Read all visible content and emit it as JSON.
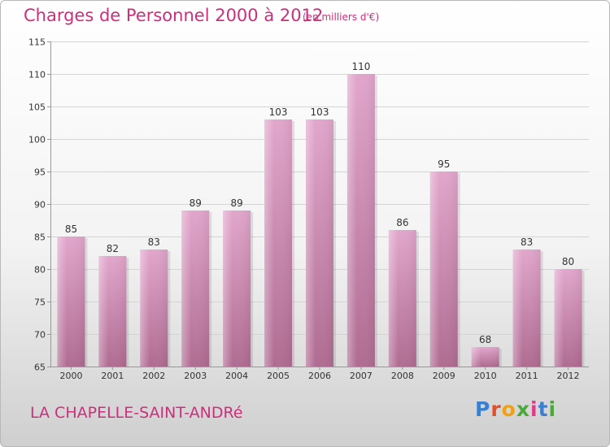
{
  "header": {
    "title": "Charges de Personnel 2000 à 2012",
    "subtitle": "(en milliers d'€)"
  },
  "footer": {
    "commune": "LA CHAPELLE-SAINT-ANDRé",
    "logo_text": "Proxiti"
  },
  "colors": {
    "bar": "#cc88aa",
    "accent": "#cc2f7c",
    "logo": [
      "#3a7fd0",
      "#e0502a",
      "#f0a010",
      "#49a93a",
      "#e03a8a",
      "#3a7fd0",
      "#49a93a"
    ]
  },
  "chart_data": {
    "type": "bar",
    "categories": [
      "2000",
      "2001",
      "2002",
      "2003",
      "2004",
      "2005",
      "2006",
      "2007",
      "2008",
      "2009",
      "2010",
      "2011",
      "2012"
    ],
    "values": [
      85,
      82,
      83,
      89,
      89,
      103,
      103,
      110,
      86,
      95,
      68,
      83,
      80
    ],
    "data_labels": [
      "85",
      "82",
      "83",
      "89",
      "89",
      "103",
      "103",
      "110",
      "86",
      "95",
      "68",
      "83",
      "80"
    ],
    "ylim": [
      65,
      115
    ],
    "yticks": [
      65,
      70,
      75,
      80,
      85,
      90,
      95,
      100,
      105,
      110,
      115
    ],
    "ytick_labels": [
      "65",
      "70",
      "75",
      "80",
      "85",
      "90",
      "95",
      "100",
      "105",
      "110",
      "115"
    ],
    "grid": true
  }
}
